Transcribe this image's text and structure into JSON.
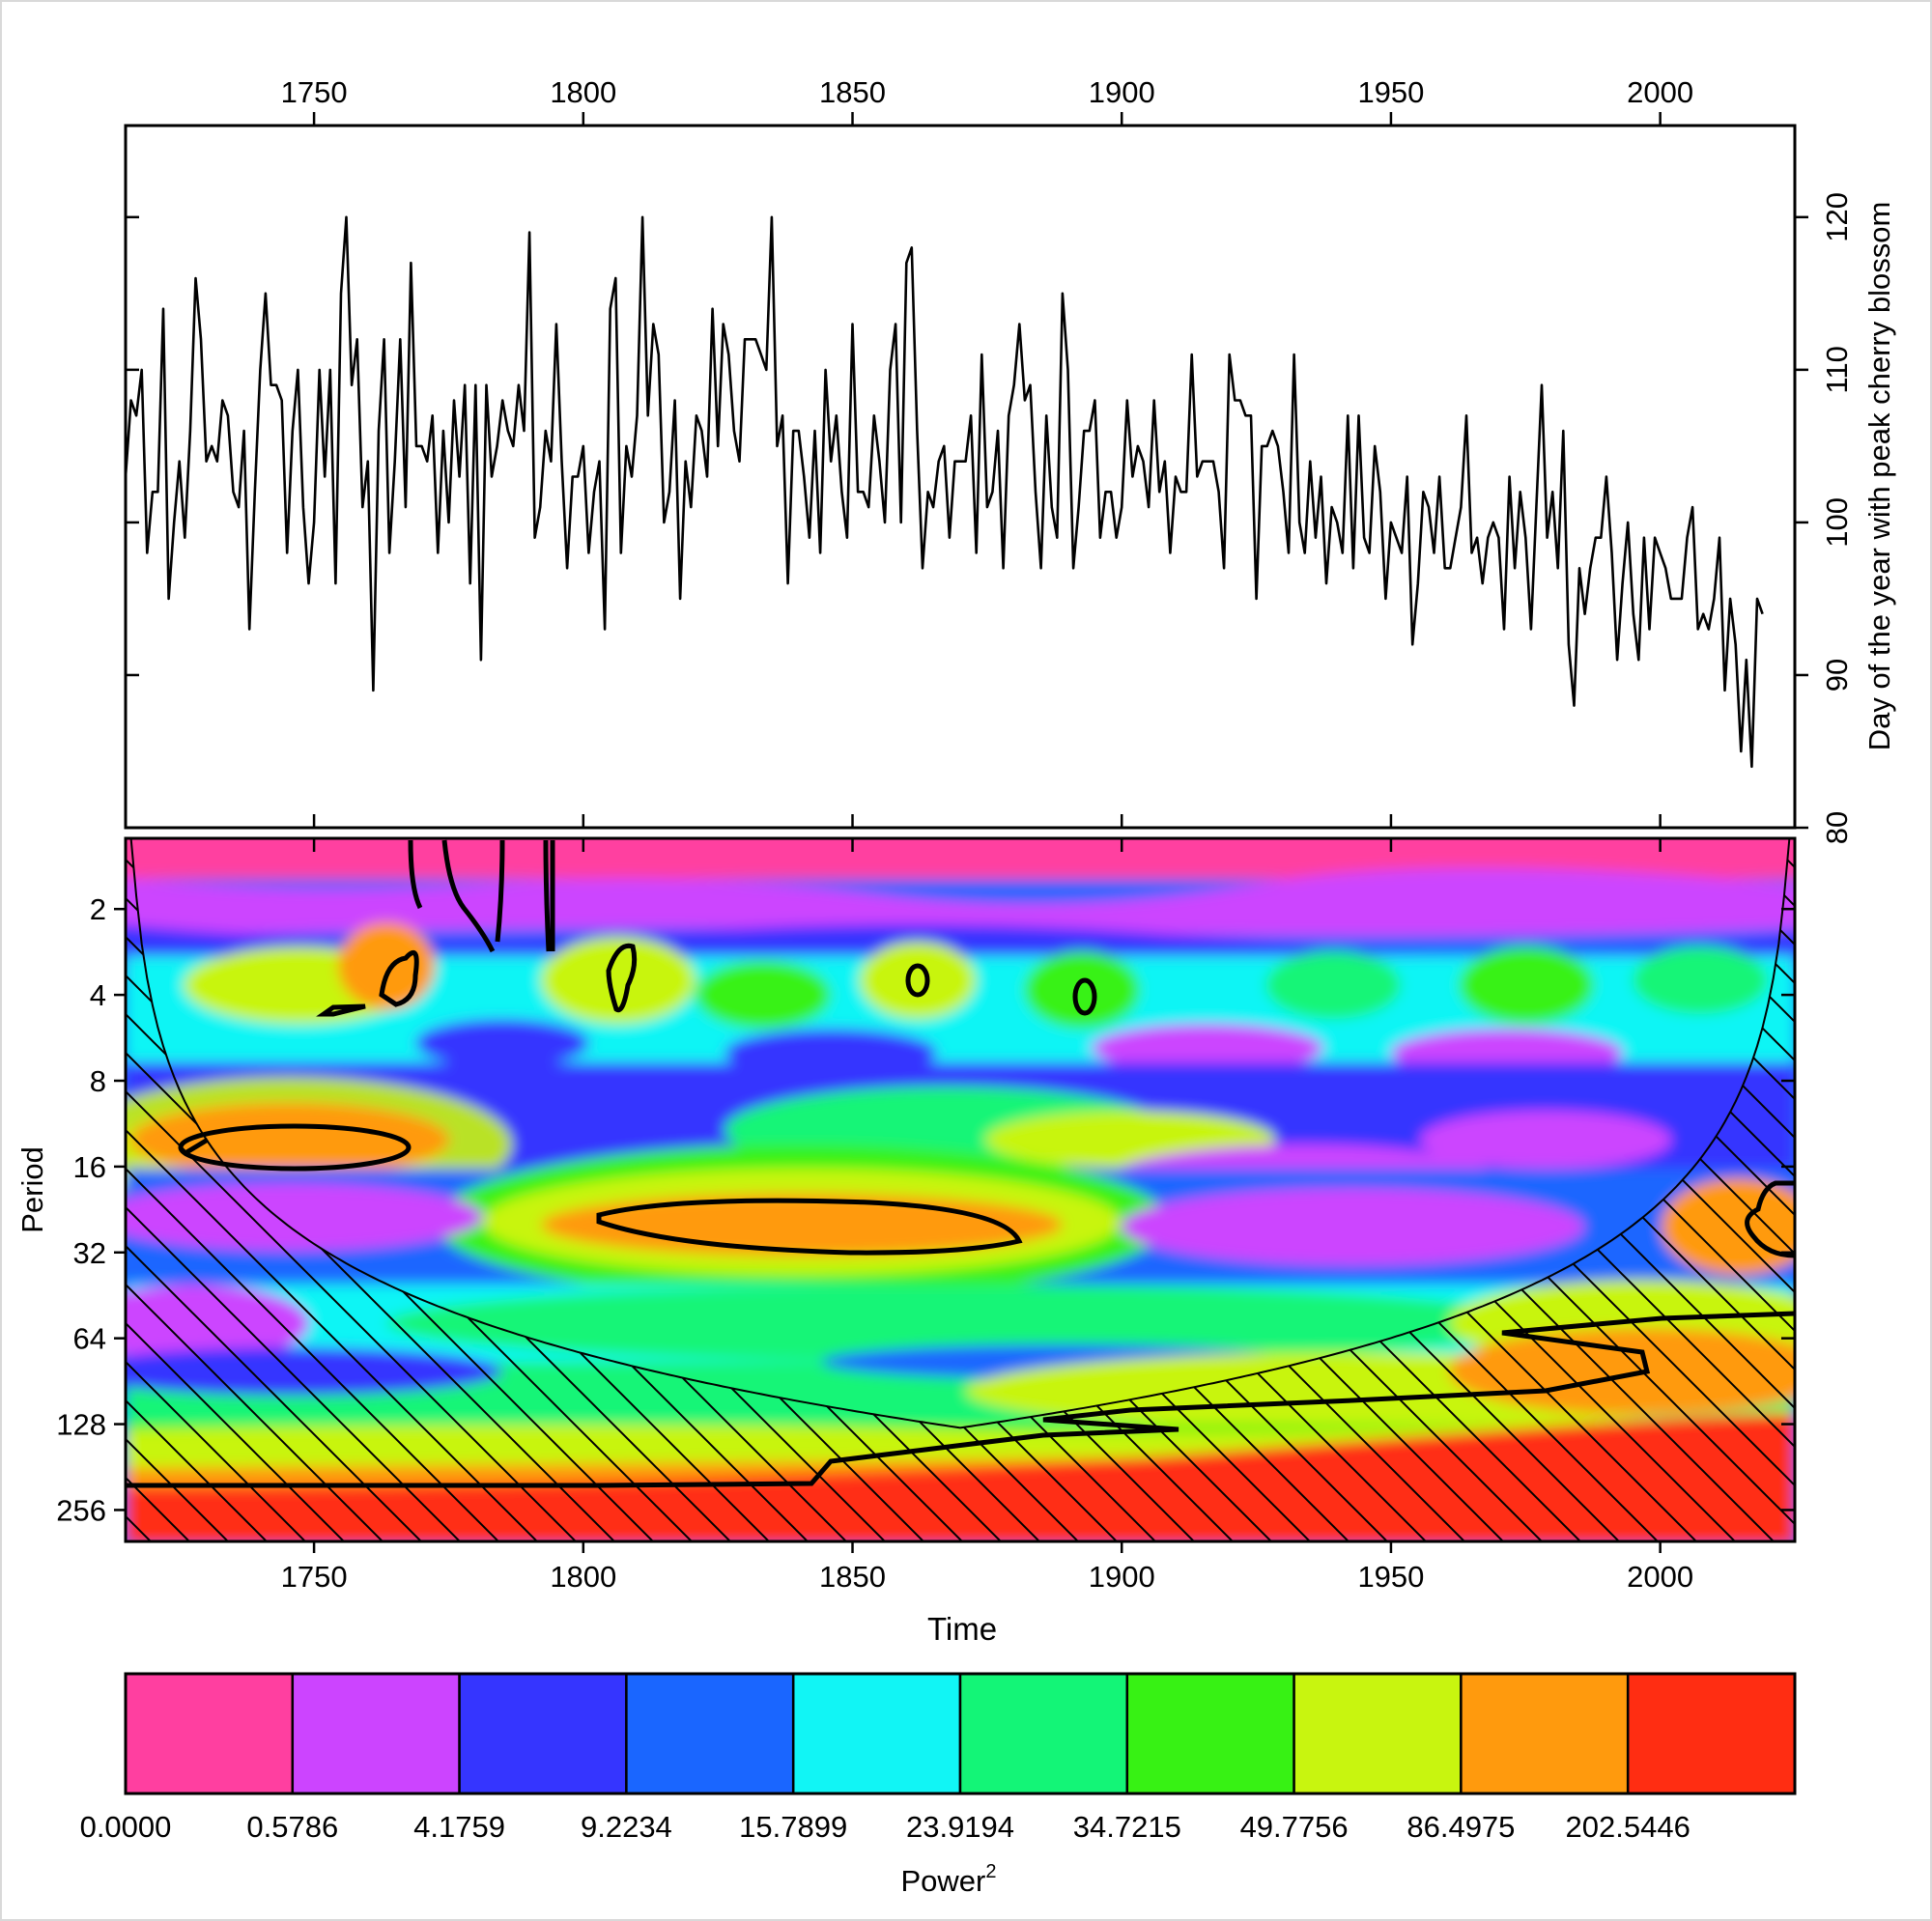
{
  "chart_data": [
    {
      "type": "line",
      "title": "",
      "xlabel": "",
      "ylabel": "Day of the year with peak cherry blossom",
      "xlim": [
        1715,
        2025
      ],
      "ylim": [
        80,
        126
      ],
      "x_ticks": [
        "1750",
        "1800",
        "1850",
        "1900",
        "1950",
        "2000"
      ],
      "y_ticks": [
        "80",
        "90",
        "100",
        "110",
        "120"
      ],
      "y_axis_side": "right",
      "x_axis_side": "top",
      "grid": false,
      "x_start": 1715,
      "series": [
        {
          "values": [
            103,
            108,
            107,
            110,
            98,
            102,
            102,
            114,
            95,
            100,
            104,
            99,
            106,
            116,
            112,
            104,
            105,
            104,
            108,
            107,
            102,
            101,
            106,
            93,
            102,
            110,
            115,
            109,
            109,
            108,
            98,
            106,
            110,
            101,
            96,
            100,
            110,
            103,
            110,
            96,
            115,
            120,
            109,
            112,
            101,
            104,
            89,
            106,
            112,
            98,
            104,
            112,
            101,
            117,
            105,
            105,
            104,
            107,
            98,
            106,
            100,
            108,
            103,
            109,
            96,
            109,
            91,
            109,
            103,
            105,
            108,
            106,
            105,
            109,
            106,
            119,
            99,
            101,
            106,
            104,
            113,
            104,
            97,
            103,
            103,
            105,
            98,
            102,
            104,
            93,
            114,
            116,
            98,
            105,
            103,
            107,
            120,
            107,
            113,
            111,
            100,
            102,
            108,
            95,
            104,
            101,
            107,
            106,
            103,
            114,
            105,
            113,
            111,
            106,
            104,
            112,
            112,
            112,
            111,
            110,
            120,
            105,
            107,
            96,
            106,
            106,
            103,
            99,
            106,
            98,
            110,
            104,
            107,
            102,
            99,
            113,
            102,
            102,
            101,
            107,
            104,
            100,
            110,
            113,
            100,
            117,
            118,
            106,
            97,
            102,
            101,
            104,
            105,
            99,
            104,
            104,
            104,
            107,
            98,
            111,
            101,
            102,
            106,
            97,
            107,
            109,
            113,
            108,
            109,
            102,
            97,
            107,
            101,
            99,
            115,
            110,
            97,
            101,
            106,
            106,
            108,
            99,
            102,
            102,
            99,
            101,
            108,
            103,
            105,
            104,
            101,
            108,
            102,
            104,
            98,
            103,
            102,
            102,
            111,
            103,
            104,
            104,
            104,
            102,
            97,
            111,
            108,
            108,
            107,
            107,
            95,
            105,
            105,
            106,
            105,
            102,
            98,
            111,
            100,
            98,
            104,
            99,
            103,
            96,
            101,
            100,
            98,
            107,
            97,
            107,
            99,
            98,
            105,
            102,
            95,
            100,
            99,
            98,
            103,
            92,
            96,
            102,
            101,
            98,
            103,
            97,
            97,
            99,
            101,
            107,
            98,
            99,
            96,
            99,
            100,
            99,
            93,
            103,
            97,
            102,
            99,
            93,
            101,
            109,
            99,
            102,
            97,
            106,
            92,
            88,
            97,
            94,
            97,
            99,
            99,
            103,
            98,
            91,
            96,
            100,
            94,
            91,
            99,
            93,
            99,
            98,
            97,
            95,
            95,
            95,
            99,
            101,
            93,
            94,
            93,
            95,
            99,
            89,
            95,
            92,
            85,
            91,
            84,
            95,
            94
          ]
        }
      ]
    },
    {
      "type": "heatmap",
      "title": "",
      "xlabel": "Time",
      "ylabel": "Period",
      "xlim": [
        1715,
        2025
      ],
      "x_ticks": [
        "1750",
        "1800",
        "1850",
        "1900",
        "1950",
        "2000"
      ],
      "y_ticks": [
        "2",
        "4",
        "8",
        "16",
        "32",
        "64",
        "128",
        "256"
      ],
      "y_scale": "log2",
      "y_reversed": true,
      "colorbar": {
        "label": "Power",
        "label_superscript": "2",
        "tick_labels": [
          "0.0000",
          "0.5786",
          "4.1759",
          "9.2234",
          "15.7899",
          "23.9194",
          "34.7215",
          "49.7756",
          "86.4975",
          "202.5446"
        ],
        "colors": [
          "#ff3fa0",
          "#cc44ff",
          "#3535ff",
          "#1a66ff",
          "#11f5f5",
          "#13f577",
          "#37f214",
          "#c8f50f",
          "#ff9a0d",
          "#ff2d12"
        ]
      },
      "significance_contours": "black outlines",
      "cone_of_influence": "hatched"
    }
  ]
}
